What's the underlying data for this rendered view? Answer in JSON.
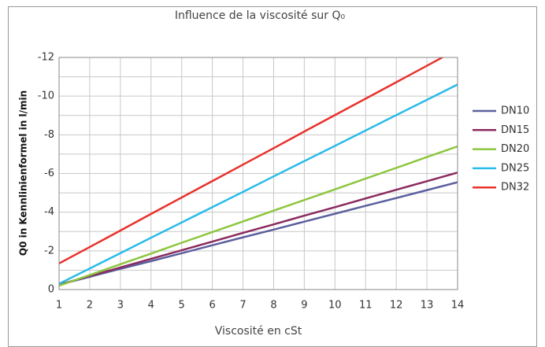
{
  "chart_data": {
    "type": "line",
    "title": "Influence de la viscosité sur Q₀",
    "xlabel": "Viscosité en cSt",
    "ylabel": "Q0 in Kennlinienformel in l/min",
    "x": [
      1,
      2,
      3,
      4,
      5,
      6,
      7,
      8,
      9,
      10,
      11,
      12,
      13,
      14
    ],
    "xlim": [
      1,
      14
    ],
    "xticks": [
      1,
      2,
      3,
      4,
      5,
      6,
      7,
      8,
      9,
      10,
      11,
      12,
      13,
      14
    ],
    "ylim": [
      0,
      -12
    ],
    "yticks": [
      0,
      -2,
      -4,
      -6,
      -8,
      -10,
      -12
    ],
    "y_minor_ticks": [
      -1,
      -3,
      -5,
      -7,
      -9,
      -11
    ],
    "grid": true,
    "legend": "right",
    "series": [
      {
        "name": "DN10",
        "color": "#5c5f9e",
        "values": [
          -0.25,
          -0.66,
          -1.07,
          -1.47,
          -1.88,
          -2.29,
          -2.7,
          -3.1,
          -3.51,
          -3.92,
          -4.33,
          -4.73,
          -5.14,
          -5.55
        ]
      },
      {
        "name": "DN15",
        "color": "#8a2a5f",
        "values": [
          -0.25,
          -0.7,
          -1.14,
          -1.59,
          -2.03,
          -2.48,
          -2.93,
          -3.37,
          -3.82,
          -4.26,
          -4.71,
          -5.16,
          -5.6,
          -6.05
        ]
      },
      {
        "name": "DN20",
        "color": "#8dc63f",
        "values": [
          -0.2,
          -0.75,
          -1.31,
          -1.86,
          -2.42,
          -2.97,
          -3.52,
          -4.08,
          -4.63,
          -5.18,
          -5.74,
          -6.29,
          -6.85,
          -7.4
        ]
      },
      {
        "name": "DN25",
        "color": "#2bbbe8",
        "values": [
          -0.3,
          -1.09,
          -1.88,
          -2.68,
          -3.47,
          -4.26,
          -5.05,
          -5.85,
          -6.64,
          -7.43,
          -8.22,
          -9.02,
          -9.81,
          -10.6
        ]
      },
      {
        "name": "DN32",
        "color": "#e8322c",
        "values": [
          -1.35,
          -2.2,
          -3.05,
          -3.91,
          -4.76,
          -5.61,
          -6.46,
          -7.31,
          -8.17,
          -9.02,
          -9.87,
          -10.72,
          -11.57,
          -12.43
        ]
      }
    ]
  }
}
